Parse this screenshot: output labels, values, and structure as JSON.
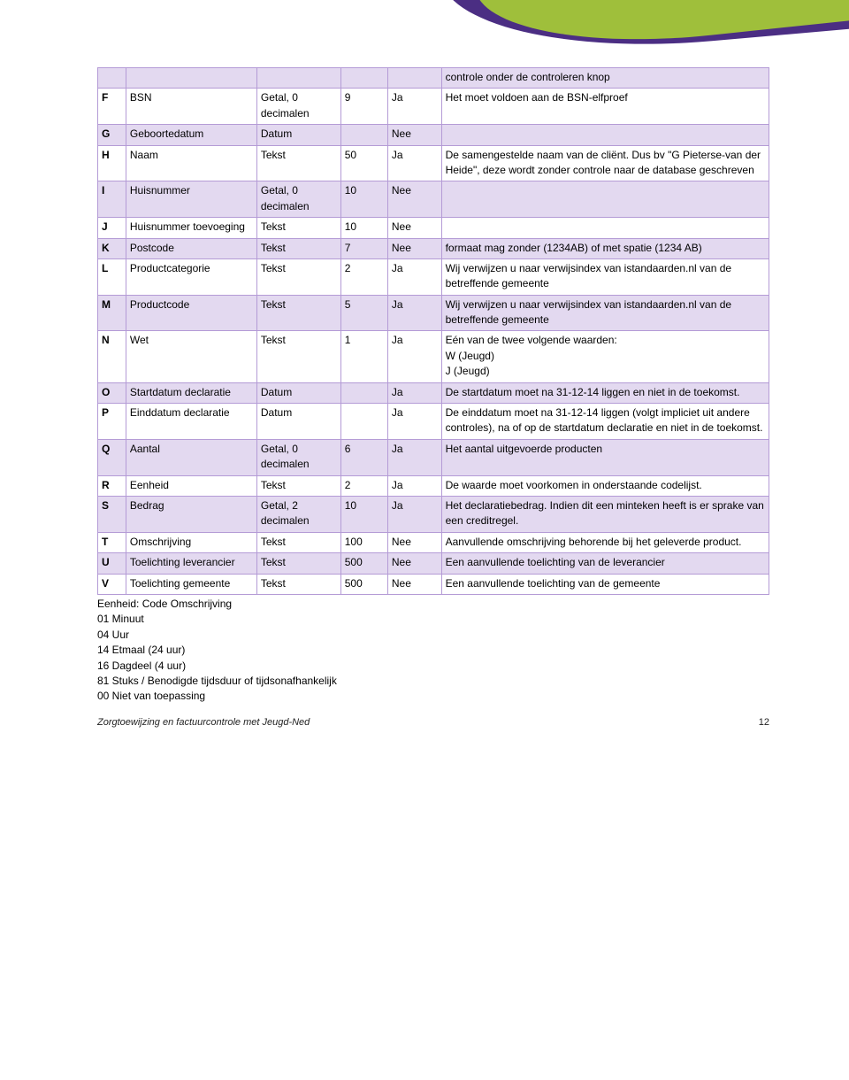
{
  "table": {
    "colors": {
      "border": "#b49bd6",
      "shade": "#e3d9f0",
      "plain": "#ffffff"
    },
    "rows": [
      {
        "shade": true,
        "cells": [
          "",
          "",
          "",
          "",
          "",
          "controle onder de controleren knop"
        ]
      },
      {
        "shade": false,
        "cells": [
          "F",
          "BSN",
          "Getal, 0 decimalen",
          "9",
          "Ja",
          "Het moet voldoen aan de BSN-elfproef"
        ]
      },
      {
        "shade": true,
        "cells": [
          "G",
          "Geboortedatum",
          "Datum",
          "",
          "Nee",
          ""
        ]
      },
      {
        "shade": false,
        "cells": [
          "H",
          "Naam",
          "Tekst",
          "50",
          "Ja",
          "De samengestelde naam van de cliënt. Dus bv \"G Pieterse-van der Heide\", deze wordt zonder controle naar de database geschreven"
        ]
      },
      {
        "shade": true,
        "cells": [
          "I",
          "Huisnummer",
          "Getal, 0 decimalen",
          "10",
          "Nee",
          ""
        ]
      },
      {
        "shade": false,
        "cells": [
          "J",
          "Huisnummer toevoeging",
          "Tekst",
          "10",
          "Nee",
          ""
        ]
      },
      {
        "shade": true,
        "cells": [
          "K",
          "Postcode",
          "Tekst",
          "7",
          "Nee",
          "formaat mag zonder (1234AB) of met spatie (1234 AB)"
        ]
      },
      {
        "shade": false,
        "cells": [
          "L",
          "Productcategorie",
          "Tekst",
          "2",
          "Ja",
          "Wij verwijzen u naar verwijsindex van istandaarden.nl van de betreffende gemeente"
        ]
      },
      {
        "shade": true,
        "cells": [
          "M",
          "Productcode",
          "Tekst",
          "5",
          "Ja",
          "Wij verwijzen u naar verwijsindex van istandaarden.nl van de betreffende gemeente"
        ]
      },
      {
        "shade": false,
        "cells": [
          "N",
          "Wet",
          "Tekst",
          "1",
          "Ja",
          "Eén van de twee volgende waarden:\nW (Jeugd)\nJ (Jeugd)"
        ]
      },
      {
        "shade": true,
        "cells": [
          "O",
          "Startdatum declaratie",
          "Datum",
          "",
          "Ja",
          "De startdatum moet na 31-12-14 liggen en niet in de toekomst."
        ]
      },
      {
        "shade": false,
        "cells": [
          "P",
          "Einddatum declaratie",
          "Datum",
          "",
          "Ja",
          "De einddatum moet na 31-12-14 liggen (volgt impliciet uit andere controles), na of op de startdatum declaratie en niet in de toekomst."
        ]
      },
      {
        "shade": true,
        "cells": [
          "Q",
          "Aantal",
          "Getal, 0 decimalen",
          "6",
          "Ja",
          "Het aantal uitgevoerde producten"
        ]
      },
      {
        "shade": false,
        "cells": [
          "R",
          "Eenheid",
          "Tekst",
          "2",
          "Ja",
          "De waarde moet voorkomen in onderstaande codelijst."
        ]
      },
      {
        "shade": true,
        "cells": [
          "S",
          "Bedrag",
          "Getal, 2 decimalen",
          "10",
          "Ja",
          "Het declaratiebedrag. Indien dit een minteken heeft is er sprake van een creditregel."
        ]
      },
      {
        "shade": false,
        "cells": [
          "T",
          "Omschrijving",
          "Tekst",
          "100",
          "Nee",
          "Aanvullende omschrijving behorende bij het geleverde product."
        ]
      },
      {
        "shade": true,
        "cells": [
          "U",
          "Toelichting leverancier",
          "Tekst",
          "500",
          "Nee",
          "Een aanvullende toelichting van de leverancier"
        ]
      },
      {
        "shade": false,
        "cells": [
          "V",
          "Toelichting gemeente",
          "Tekst",
          "500",
          "Nee",
          "Een aanvullende toelichting van de gemeente"
        ]
      }
    ]
  },
  "after_table_lines": [
    "Eenheid: Code Omschrijving",
    "01 Minuut",
    "04 Uur",
    "14 Etmaal (24 uur)",
    "16 Dagdeel (4 uur)",
    "81 Stuks / Benodigde tijdsduur of tijdsonafhankelijk",
    "00 Niet van toepassing"
  ],
  "footer": {
    "title": "Zorgtoewijzing en factuurcontrole met Jeugd-Ned",
    "page": "12"
  }
}
